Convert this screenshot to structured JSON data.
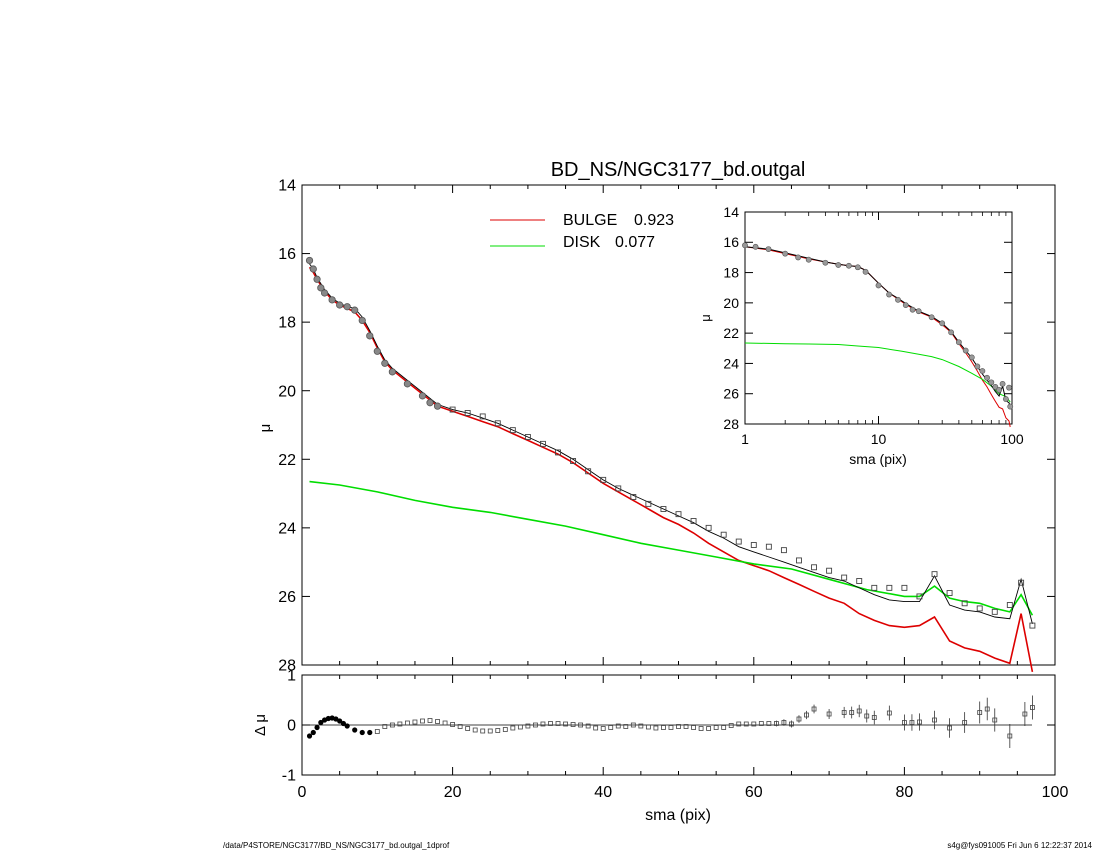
{
  "page": {
    "footer_left": "/data/P4STORE/NGC3177/BD_NS/NGC3177_bd.outgal_1dprof",
    "footer_right": "s4g@fys091005  Fri Jun  6 12:22:37 2014"
  },
  "chart_data": [
    {
      "id": "main-profile",
      "type": "line",
      "title": "BD_NS/NGC3177_bd.outgal",
      "xlabel": "",
      "ylabel": "μ",
      "xlim": [
        0,
        100
      ],
      "ylim": [
        28,
        14
      ],
      "y_inverted": true,
      "y_ticks": [
        14,
        16,
        18,
        20,
        22,
        24,
        26,
        28
      ],
      "grid": false,
      "legend_placement": "top-center",
      "legend": [
        {
          "label": "BULGE",
          "value": "0.923",
          "color": "#dd0000"
        },
        {
          "label": "DISK",
          "value": "0.077",
          "color": "#00dd00"
        }
      ],
      "series": [
        {
          "name": "BULGE",
          "color": "#dd0000",
          "x": [
            1,
            1.5,
            2,
            3,
            4,
            5,
            6,
            7,
            8,
            9,
            10,
            11,
            12,
            14,
            16,
            18,
            20,
            22,
            24,
            26,
            28,
            30,
            32,
            34,
            36,
            38,
            40,
            42,
            44,
            46,
            48,
            50,
            52,
            54,
            56,
            58,
            60,
            62,
            64,
            66,
            68,
            70,
            72,
            74,
            76,
            78,
            80,
            82,
            84,
            86,
            88,
            90,
            92,
            94,
            95.5,
            97
          ],
          "y": [
            16.4,
            16.55,
            16.75,
            17.1,
            17.35,
            17.5,
            17.6,
            17.7,
            17.95,
            18.3,
            18.75,
            19.15,
            19.4,
            19.75,
            20.1,
            20.45,
            20.6,
            20.75,
            20.9,
            21.05,
            21.25,
            21.45,
            21.65,
            21.85,
            22.1,
            22.4,
            22.7,
            22.95,
            23.2,
            23.45,
            23.7,
            23.9,
            24.15,
            24.45,
            24.7,
            24.95,
            25.1,
            25.25,
            25.45,
            25.65,
            25.85,
            26.05,
            26.2,
            26.5,
            26.7,
            26.85,
            26.9,
            26.85,
            26.6,
            27.3,
            27.5,
            27.6,
            27.8,
            27.95,
            26.5,
            28.2
          ]
        },
        {
          "name": "DISK",
          "color": "#00dd00",
          "x": [
            1,
            5,
            10,
            15,
            20,
            25,
            30,
            35,
            40,
            45,
            50,
            55,
            60,
            65,
            70,
            75,
            80,
            82,
            84,
            86,
            88,
            90,
            92,
            94,
            95.5,
            97
          ],
          "y": [
            22.65,
            22.75,
            22.95,
            23.2,
            23.4,
            23.55,
            23.75,
            23.95,
            24.2,
            24.45,
            24.65,
            24.85,
            25.05,
            25.2,
            25.5,
            25.8,
            26.0,
            26.0,
            25.7,
            26.05,
            26.15,
            26.2,
            26.35,
            26.45,
            25.95,
            26.55
          ]
        },
        {
          "name": "",
          "color": "#000000",
          "x": [
            1,
            1.5,
            2,
            3,
            4,
            5,
            6,
            7,
            8,
            9,
            10,
            11,
            12,
            14,
            16,
            18,
            20,
            22,
            24,
            26,
            28,
            30,
            32,
            34,
            36,
            38,
            40,
            42,
            44,
            46,
            48,
            50,
            52,
            54,
            56,
            58,
            60,
            62,
            64,
            66,
            68,
            70,
            72,
            74,
            76,
            78,
            80,
            82,
            84,
            86,
            88,
            90,
            92,
            94,
            95.5,
            97
          ],
          "y": [
            16.3,
            16.45,
            16.7,
            17.05,
            17.3,
            17.45,
            17.55,
            17.6,
            17.85,
            18.25,
            18.7,
            19.1,
            19.35,
            19.7,
            20.05,
            20.4,
            20.55,
            20.65,
            20.8,
            20.95,
            21.15,
            21.35,
            21.55,
            21.75,
            22.0,
            22.3,
            22.6,
            22.85,
            23.05,
            23.25,
            23.45,
            23.65,
            23.85,
            24.1,
            24.3,
            24.55,
            24.7,
            24.85,
            25.0,
            25.15,
            25.3,
            25.45,
            25.55,
            25.75,
            25.95,
            26.1,
            26.15,
            26.15,
            25.4,
            26.25,
            26.4,
            26.45,
            26.6,
            26.65,
            25.5,
            26.8
          ]
        },
        {
          "name": "",
          "color": "#555555",
          "type": "scatter",
          "x": [
            1,
            1.5,
            2,
            2.5,
            3,
            4,
            5,
            6,
            7,
            8,
            9,
            10,
            11,
            12,
            14,
            16,
            17,
            18,
            20,
            22,
            24,
            26,
            28,
            30,
            32,
            34,
            36,
            38,
            40,
            42,
            44,
            46,
            48,
            50,
            52,
            54,
            56,
            58,
            60,
            62,
            64,
            66,
            68,
            70,
            72,
            74,
            76,
            78,
            80,
            82,
            84,
            86,
            88,
            90,
            92,
            94,
            95.5,
            97
          ],
          "y": [
            16.2,
            16.45,
            16.75,
            17.0,
            17.15,
            17.35,
            17.5,
            17.55,
            17.65,
            17.95,
            18.4,
            18.85,
            19.2,
            19.45,
            19.8,
            20.15,
            20.35,
            20.45,
            20.55,
            20.65,
            20.75,
            20.95,
            21.15,
            21.35,
            21.55,
            21.8,
            22.05,
            22.35,
            22.6,
            22.85,
            23.1,
            23.3,
            23.45,
            23.6,
            23.8,
            24.0,
            24.2,
            24.4,
            24.5,
            24.55,
            24.65,
            24.95,
            25.15,
            25.25,
            25.45,
            25.55,
            25.75,
            25.75,
            25.75,
            26.0,
            25.35,
            25.9,
            26.2,
            26.35,
            26.45,
            26.25,
            25.6,
            26.85
          ]
        }
      ]
    },
    {
      "id": "residuals",
      "type": "scatter",
      "title": "",
      "xlabel": "sma (pix)",
      "ylabel": "Δ μ",
      "xlim": [
        0,
        100
      ],
      "ylim": [
        -1,
        1
      ],
      "x_ticks": [
        0,
        20,
        40,
        60,
        80,
        100
      ],
      "y_ticks": [
        -1,
        0,
        1
      ],
      "zero_line": true,
      "x": [
        1,
        1.5,
        2,
        2.5,
        3,
        3.5,
        4,
        4.5,
        5,
        5.5,
        6,
        7,
        8,
        9,
        10,
        11,
        12,
        13,
        14,
        15,
        16,
        17,
        18,
        19,
        20,
        21,
        22,
        23,
        24,
        25,
        26,
        27,
        28,
        29,
        30,
        31,
        32,
        33,
        34,
        35,
        36,
        37,
        38,
        39,
        40,
        41,
        42,
        43,
        44,
        45,
        46,
        47,
        48,
        49,
        50,
        51,
        52,
        53,
        54,
        55,
        56,
        57,
        58,
        59,
        60,
        61,
        62,
        63,
        64,
        65,
        66,
        67,
        68,
        70,
        72,
        73,
        74,
        75,
        76,
        78,
        80,
        81,
        82,
        84,
        86,
        88,
        90,
        91,
        92,
        94,
        96,
        97
      ],
      "y": [
        -0.22,
        -0.15,
        -0.05,
        0.05,
        0.1,
        0.13,
        0.14,
        0.12,
        0.08,
        0.03,
        -0.02,
        -0.1,
        -0.15,
        -0.15,
        -0.13,
        -0.03,
        0.0,
        0.02,
        0.04,
        0.06,
        0.08,
        0.09,
        0.07,
        0.04,
        0.01,
        -0.03,
        -0.07,
        -0.1,
        -0.12,
        -0.12,
        -0.11,
        -0.09,
        -0.06,
        -0.04,
        -0.02,
        0.0,
        0.02,
        0.03,
        0.03,
        0.02,
        0.01,
        0.0,
        -0.02,
        -0.06,
        -0.07,
        -0.05,
        -0.02,
        -0.03,
        0.0,
        -0.02,
        -0.04,
        -0.06,
        -0.05,
        -0.05,
        -0.03,
        -0.03,
        -0.05,
        -0.07,
        -0.07,
        -0.05,
        -0.05,
        -0.01,
        0.02,
        0.02,
        0.02,
        0.03,
        0.03,
        0.03,
        0.05,
        0.02,
        0.12,
        0.2,
        0.32,
        0.22,
        0.25,
        0.25,
        0.28,
        0.18,
        0.15,
        0.24,
        0.05,
        0.05,
        0.06,
        0.1,
        -0.06,
        0.05,
        0.25,
        0.32,
        0.1,
        -0.22,
        0.22,
        0.35
      ]
    },
    {
      "id": "inset-log",
      "type": "line",
      "title": "",
      "xlabel": "sma (pix)",
      "ylabel": "μ",
      "x_scale": "log",
      "xlim": [
        1,
        100
      ],
      "ylim": [
        28,
        14
      ],
      "y_inverted": true,
      "x_ticks": [
        1,
        10,
        100
      ],
      "y_ticks": [
        14,
        16,
        18,
        20,
        22,
        24,
        26,
        28
      ],
      "series": [
        {
          "name": "BULGE",
          "color": "#dd0000",
          "x": [
            1,
            1.5,
            2,
            3,
            4,
            5,
            6,
            7,
            8,
            10,
            12,
            14,
            16,
            20,
            25,
            30,
            35,
            40,
            45,
            50,
            55,
            60,
            65,
            70,
            75,
            80,
            85,
            90,
            95,
            97
          ],
          "y": [
            16.3,
            16.5,
            16.75,
            17.1,
            17.3,
            17.45,
            17.55,
            17.6,
            17.85,
            18.7,
            19.35,
            19.75,
            20.1,
            20.6,
            20.95,
            21.45,
            21.95,
            22.7,
            23.3,
            23.9,
            24.5,
            25.1,
            25.55,
            26.05,
            26.5,
            26.9,
            27.0,
            27.6,
            27.8,
            28.2
          ]
        },
        {
          "name": "DISK",
          "color": "#00dd00",
          "x": [
            1,
            2,
            3,
            5,
            7,
            10,
            15,
            20,
            25,
            30,
            40,
            50,
            60,
            70,
            80,
            90,
            97
          ],
          "y": [
            22.65,
            22.7,
            22.72,
            22.75,
            22.85,
            22.95,
            23.2,
            23.4,
            23.55,
            23.75,
            24.2,
            24.65,
            25.05,
            25.5,
            26.0,
            26.2,
            26.55
          ]
        },
        {
          "name": "",
          "color": "#000000",
          "x": [
            1,
            1.5,
            2,
            3,
            4,
            5,
            6,
            7,
            8,
            10,
            12,
            14,
            16,
            20,
            25,
            30,
            35,
            40,
            45,
            50,
            55,
            60,
            65,
            70,
            75,
            80,
            85,
            90,
            95,
            97
          ],
          "y": [
            16.3,
            16.45,
            16.7,
            17.05,
            17.3,
            17.45,
            17.55,
            17.6,
            17.85,
            18.7,
            19.35,
            19.7,
            20.05,
            20.55,
            20.9,
            21.35,
            21.9,
            22.6,
            23.15,
            23.65,
            24.2,
            24.7,
            25.1,
            25.45,
            25.85,
            26.15,
            25.5,
            26.45,
            26.6,
            26.8
          ]
        },
        {
          "name": "",
          "color": "#555555",
          "type": "scatter",
          "x": [
            1,
            1.2,
            1.5,
            2,
            2.5,
            3,
            4,
            5,
            6,
            7,
            8,
            10,
            12,
            14,
            16,
            18,
            20,
            25,
            30,
            35,
            40,
            45,
            50,
            55,
            60,
            65,
            70,
            75,
            80,
            85,
            90,
            95,
            97
          ],
          "y": [
            16.2,
            16.3,
            16.45,
            16.75,
            17.0,
            17.15,
            17.35,
            17.5,
            17.55,
            17.65,
            17.95,
            18.85,
            19.45,
            19.8,
            20.15,
            20.45,
            20.55,
            20.95,
            21.35,
            21.95,
            22.6,
            23.15,
            23.6,
            24.2,
            24.5,
            24.95,
            25.25,
            25.55,
            25.75,
            25.35,
            26.35,
            25.6,
            26.85
          ]
        }
      ]
    }
  ]
}
